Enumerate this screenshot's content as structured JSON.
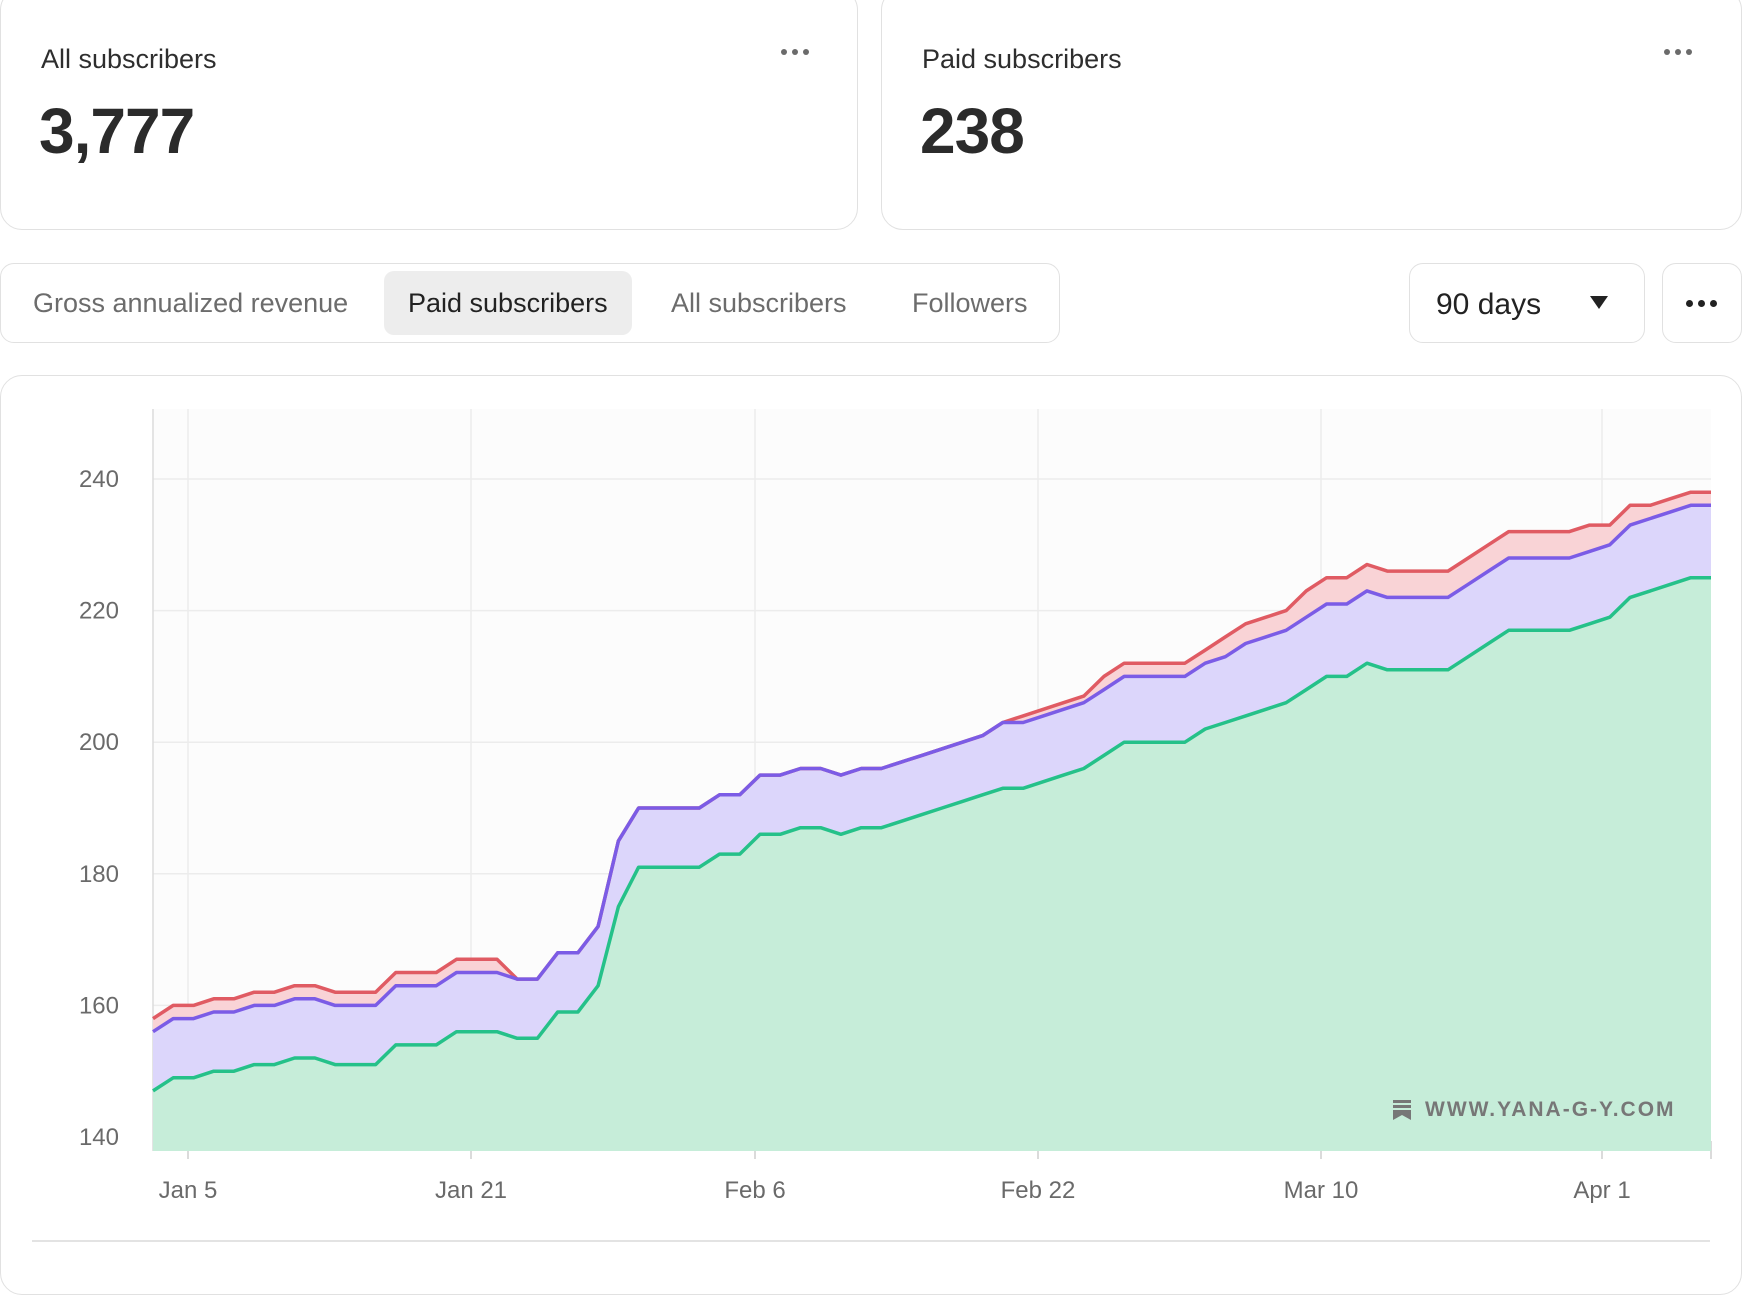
{
  "cards": [
    {
      "label": "All subscribers",
      "value": "3,777"
    },
    {
      "label": "Paid subscribers",
      "value": "238"
    }
  ],
  "tabs": [
    {
      "label": "Gross annualized revenue",
      "active": false
    },
    {
      "label": "Paid subscribers",
      "active": true
    },
    {
      "label": "All subscribers",
      "active": false
    },
    {
      "label": "Followers",
      "active": false
    }
  ],
  "range_select": {
    "label": "90 days"
  },
  "watermark": "WWW.YANA-G-Y.COM",
  "colors": {
    "red": "#e05b63",
    "purple": "#7b5ce6",
    "green": "#25c189",
    "red_fill": "#f9d3d6",
    "purple_fill": "#dcd6fb",
    "green_fill": "#c6edd9"
  },
  "icons": [
    "more-horizontal-icon",
    "caret-down-icon",
    "bookmark-icon"
  ],
  "chart_data": {
    "type": "area",
    "stacked": true,
    "ylim": [
      140,
      240
    ],
    "yticks": [
      140,
      160,
      180,
      200,
      220,
      240
    ],
    "xticks": [
      "Jan 5",
      "Jan 21",
      "Feb 6",
      "Feb 22",
      "Mar 10",
      "Apr 1"
    ],
    "grid": true,
    "series": [
      {
        "color": "green",
        "values": [
          147,
          149,
          149,
          150,
          150,
          151,
          151,
          152,
          152,
          151,
          151,
          151,
          154,
          154,
          154,
          156,
          156,
          156,
          155,
          155,
          159,
          159,
          163,
          175,
          181,
          181,
          181,
          181,
          183,
          183,
          186,
          186,
          187,
          187,
          186,
          187,
          187,
          188,
          189,
          190,
          191,
          192,
          193,
          193,
          194,
          195,
          196,
          198,
          200,
          200,
          200,
          200,
          202,
          203,
          204,
          205,
          206,
          208,
          210,
          210,
          212,
          211,
          211,
          211,
          211,
          213,
          215,
          217,
          217,
          217,
          217,
          218,
          219,
          222,
          223,
          224,
          225,
          225
        ]
      },
      {
        "color": "purple",
        "values": [
          156,
          158,
          158,
          159,
          159,
          160,
          160,
          161,
          161,
          160,
          160,
          160,
          163,
          163,
          163,
          165,
          165,
          165,
          164,
          164,
          168,
          168,
          172,
          185,
          190,
          190,
          190,
          190,
          192,
          192,
          195,
          195,
          196,
          196,
          195,
          196,
          196,
          197,
          198,
          199,
          200,
          201,
          203,
          203,
          204,
          205,
          206,
          208,
          210,
          210,
          210,
          210,
          212,
          213,
          215,
          216,
          217,
          219,
          221,
          221,
          223,
          222,
          222,
          222,
          222,
          224,
          226,
          228,
          228,
          228,
          228,
          229,
          230,
          233,
          234,
          235,
          236,
          236
        ]
      },
      {
        "color": "red",
        "values": [
          158,
          160,
          160,
          161,
          161,
          162,
          162,
          163,
          163,
          162,
          162,
          162,
          165,
          165,
          165,
          167,
          167,
          167,
          164,
          164,
          168,
          168,
          172,
          185,
          190,
          190,
          190,
          190,
          192,
          192,
          195,
          195,
          196,
          196,
          195,
          196,
          196,
          197,
          198,
          199,
          200,
          201,
          203,
          204,
          205,
          206,
          207,
          210,
          212,
          212,
          212,
          212,
          214,
          216,
          218,
          219,
          220,
          223,
          225,
          225,
          227,
          226,
          226,
          226,
          226,
          228,
          230,
          232,
          232,
          232,
          232,
          233,
          233,
          236,
          236,
          237,
          238,
          238
        ]
      }
    ]
  }
}
